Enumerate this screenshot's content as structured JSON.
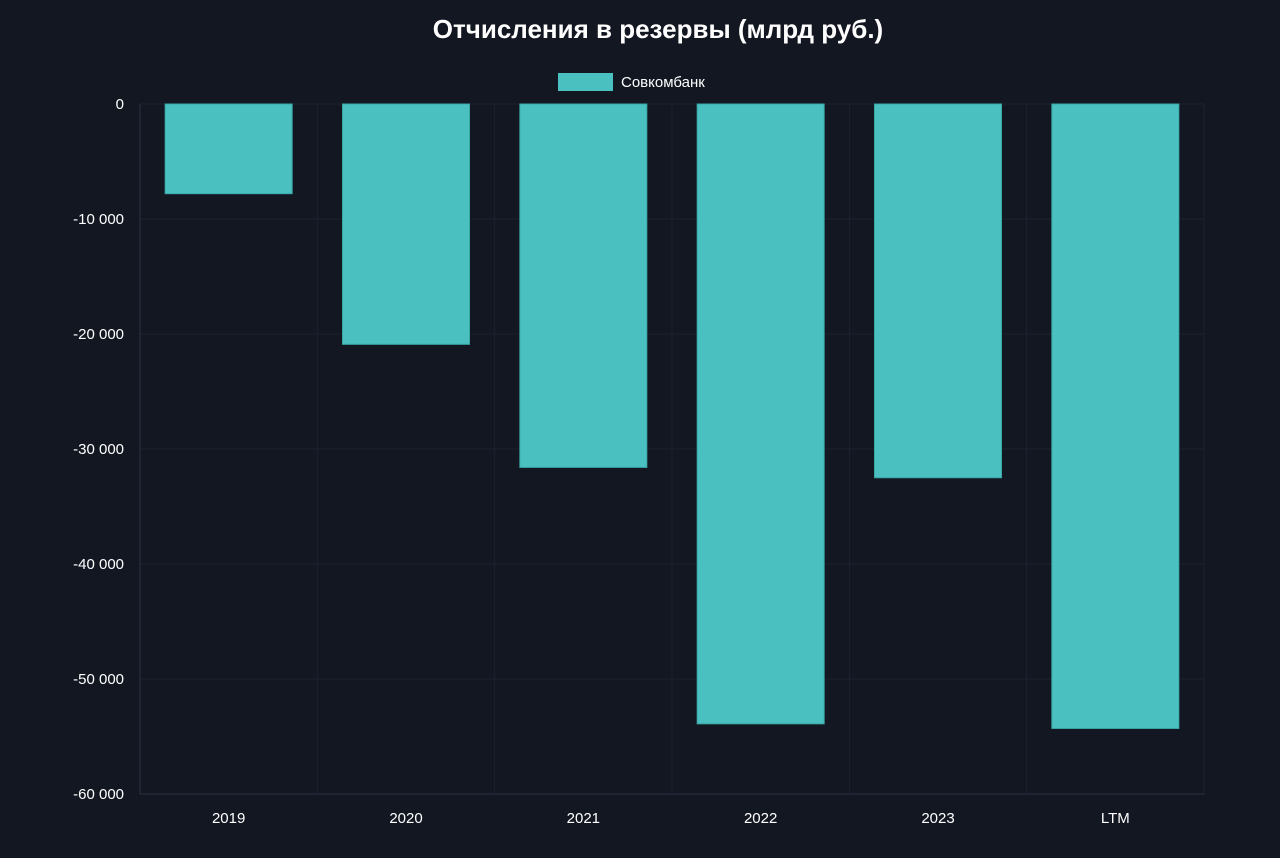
{
  "chart_data": {
    "type": "bar",
    "title": "Отчисления в резервы  (млрд руб.)",
    "xlabel": "",
    "ylabel": "",
    "categories": [
      "2019",
      "2020",
      "2021",
      "2022",
      "2023",
      "LTM"
    ],
    "series": [
      {
        "name": "Совкомбанк",
        "color": "#4bc0c0",
        "values": [
          -7800,
          -20900,
          -31600,
          -53900,
          -32500,
          -54300
        ]
      }
    ],
    "ylim": [
      -60000,
      0
    ],
    "yticks": [
      0,
      -10000,
      -20000,
      -30000,
      -40000,
      -50000,
      -60000
    ],
    "ytick_labels": [
      "0",
      "-10 000",
      "-20 000",
      "-30 000",
      "-40 000",
      "-50 000",
      "-60 000"
    ],
    "grid": true,
    "legend_position": "top-center"
  },
  "colors": {
    "background": "#131722",
    "grid": "#1c2130",
    "text": "#ffffff"
  }
}
